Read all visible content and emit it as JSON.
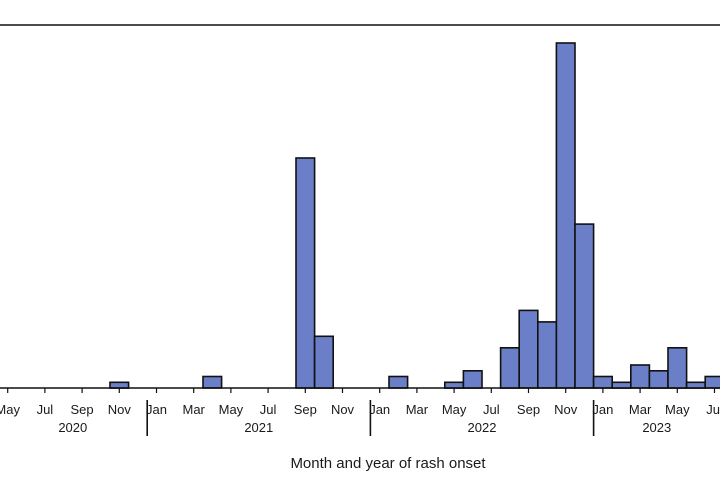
{
  "chart_data": {
    "type": "bar",
    "xlabel": "Month and year of rash onset",
    "ylabel": "",
    "title": "",
    "bar_color": "#6b7fc8",
    "bar_border": "#111111",
    "grid": false,
    "ylim": [
      0,
      60
    ],
    "categories": [
      "May 2020",
      "Jun 2020",
      "Jul 2020",
      "Aug 2020",
      "Sep 2020",
      "Oct 2020",
      "Nov 2020",
      "Dec 2020",
      "Jan 2021",
      "Feb 2021",
      "Mar 2021",
      "Apr 2021",
      "May 2021",
      "Jun 2021",
      "Jul 2021",
      "Aug 2021",
      "Sep 2021",
      "Oct 2021",
      "Nov 2021",
      "Dec 2021",
      "Jan 2022",
      "Feb 2022",
      "Mar 2022",
      "Apr 2022",
      "May 2022",
      "Jun 2022",
      "Jul 2022",
      "Aug 2022",
      "Sep 2022",
      "Oct 2022",
      "Nov 2022",
      "Dec 2022",
      "Jan 2023",
      "Feb 2023",
      "Mar 2023",
      "Apr 2023",
      "May 2023",
      "Jun 2023",
      "Jul 2023",
      "Aug 2023"
    ],
    "values": [
      0,
      0,
      0,
      0,
      0,
      0,
      1,
      0,
      0,
      0,
      0,
      2,
      0,
      0,
      0,
      0,
      40,
      9,
      0,
      0,
      0,
      2,
      0,
      0,
      1,
      3,
      0,
      7,
      13.5,
      11.5,
      60,
      28.5,
      2,
      1,
      4,
      3,
      7,
      1,
      2,
      2
    ],
    "tick_labels": [
      {
        "month": 0,
        "label": "May"
      },
      {
        "month": 2,
        "label": "Jul"
      },
      {
        "month": 4,
        "label": "Sep"
      },
      {
        "month": 6,
        "label": "Nov"
      },
      {
        "month": 8,
        "label": "Jan"
      },
      {
        "month": 10,
        "label": "Mar"
      },
      {
        "month": 12,
        "label": "May"
      },
      {
        "month": 14,
        "label": "Jul"
      },
      {
        "month": 16,
        "label": "Sep"
      },
      {
        "month": 18,
        "label": "Nov"
      },
      {
        "month": 20,
        "label": "Jan"
      },
      {
        "month": 22,
        "label": "Mar"
      },
      {
        "month": 24,
        "label": "May"
      },
      {
        "month": 26,
        "label": "Jul"
      },
      {
        "month": 28,
        "label": "Sep"
      },
      {
        "month": 30,
        "label": "Nov"
      },
      {
        "month": 32,
        "label": "Jan"
      },
      {
        "month": 34,
        "label": "Mar"
      },
      {
        "month": 36,
        "label": "May"
      },
      {
        "month": 38,
        "label": "Jul"
      }
    ],
    "years": [
      {
        "label": "2020",
        "start": 0,
        "end": 8
      },
      {
        "label": "2021",
        "start": 8,
        "end": 20
      },
      {
        "label": "2022",
        "start": 20,
        "end": 32
      },
      {
        "label": "2023",
        "start": 32,
        "end": 40
      }
    ]
  }
}
